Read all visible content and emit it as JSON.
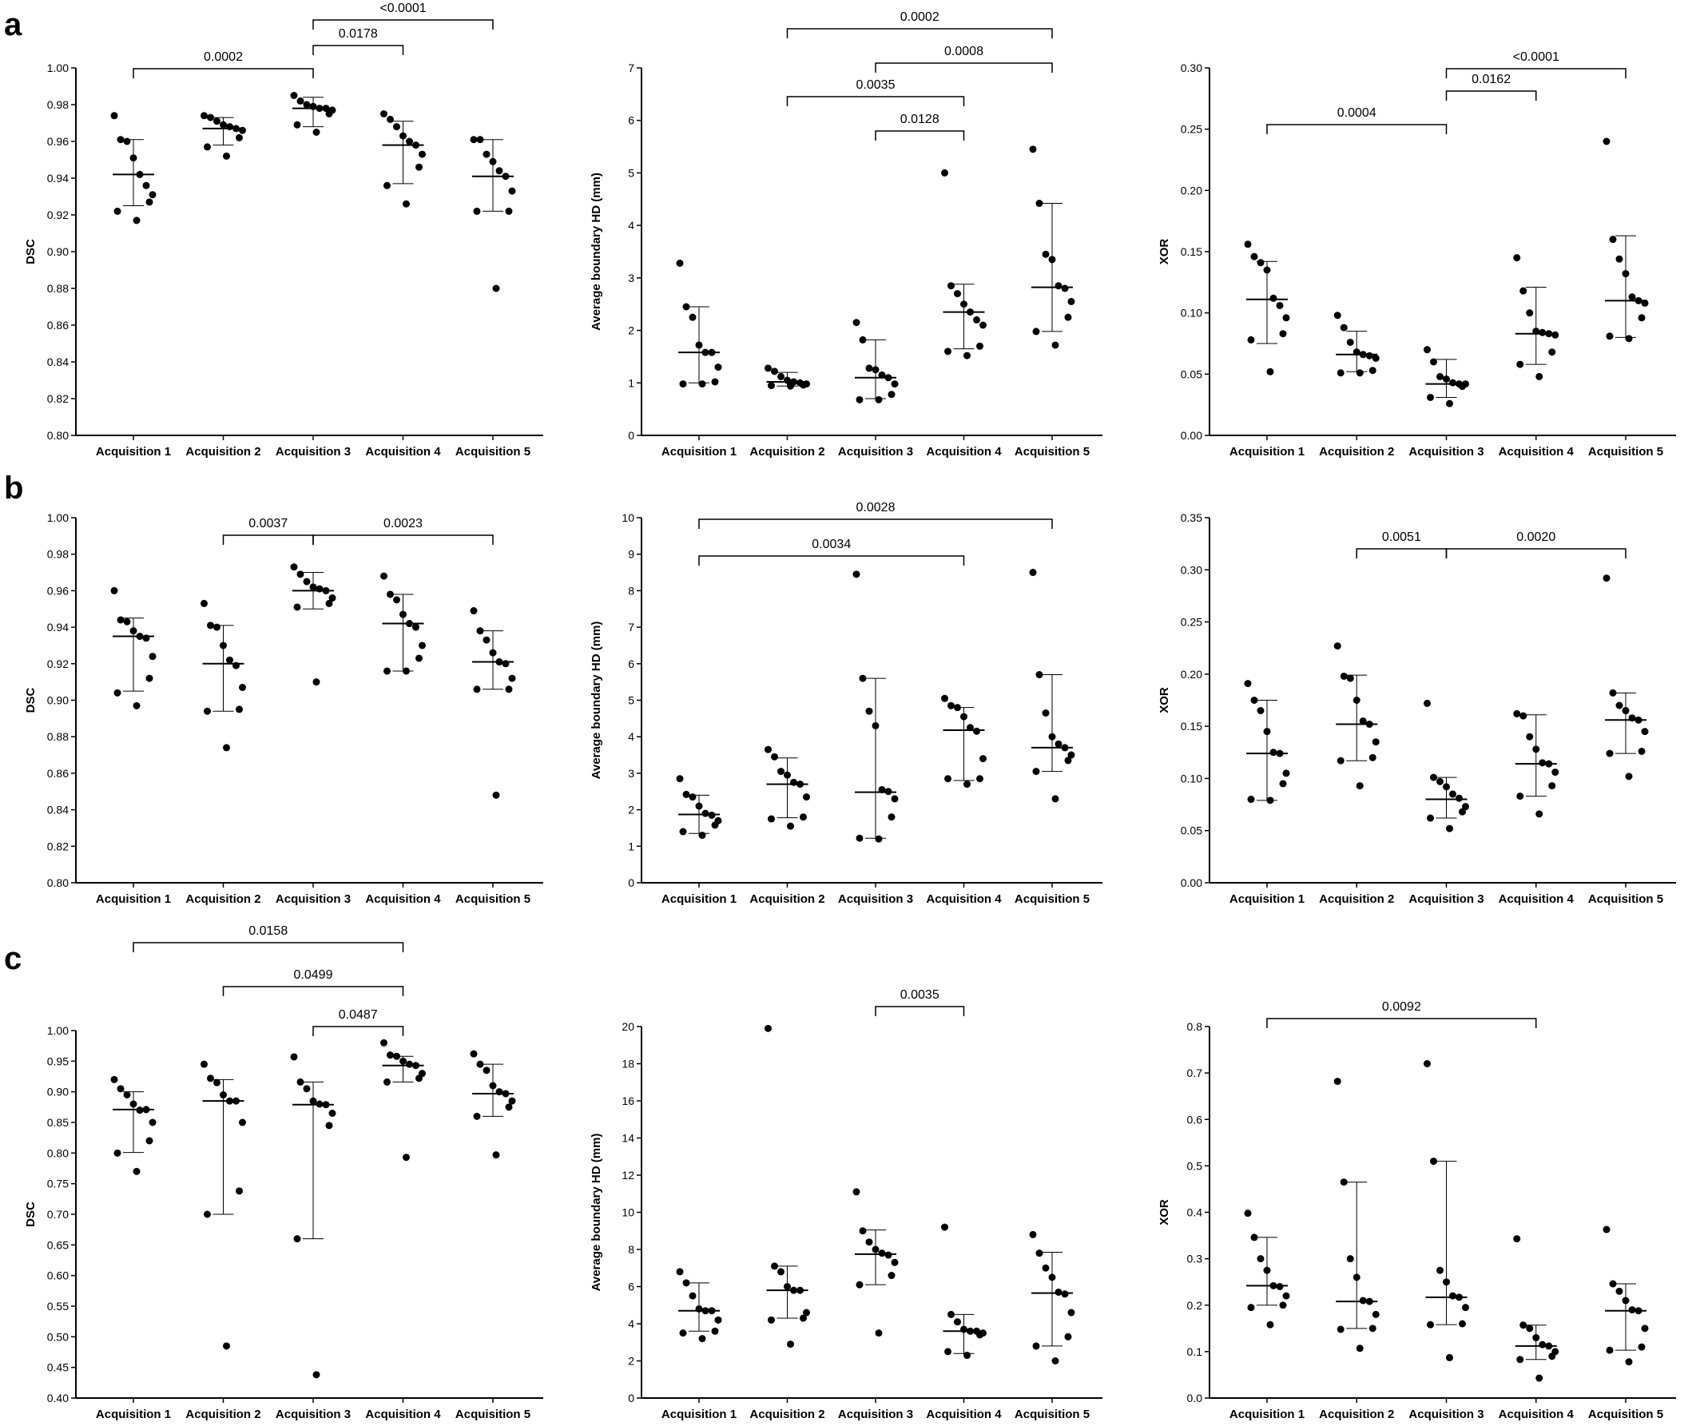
{
  "figure": {
    "row_labels": [
      "a",
      "b",
      "c"
    ]
  },
  "chart_data": [
    {
      "type": "scatter",
      "panel": "a-dsc",
      "row": "a",
      "title": "",
      "xlabel": "",
      "ylabel": "DSC",
      "categories": [
        "Acquisition 1",
        "Acquisition 2",
        "Acquisition 3",
        "Acquisition 4",
        "Acquisition 5"
      ],
      "ylim": [
        0.8,
        1.0
      ],
      "yticks": [
        "0.80",
        "0.82",
        "0.84",
        "0.86",
        "0.88",
        "0.90",
        "0.92",
        "0.94",
        "0.96",
        "0.98",
        "1.00"
      ],
      "points": [
        [
          0.974,
          0.961,
          0.96,
          0.951,
          0.942,
          0.936,
          0.931,
          0.927,
          0.922,
          0.917
        ],
        [
          0.974,
          0.973,
          0.971,
          0.969,
          0.968,
          0.967,
          0.966,
          0.962,
          0.957,
          0.952
        ],
        [
          0.985,
          0.982,
          0.98,
          0.979,
          0.978,
          0.978,
          0.977,
          0.975,
          0.969,
          0.965
        ],
        [
          0.975,
          0.972,
          0.968,
          0.963,
          0.96,
          0.958,
          0.953,
          0.946,
          0.936,
          0.926
        ],
        [
          0.961,
          0.961,
          0.953,
          0.949,
          0.944,
          0.941,
          0.933,
          0.922,
          0.922,
          0.88
        ]
      ],
      "median": [
        0.942,
        0.967,
        0.978,
        0.958,
        0.941
      ],
      "upper": [
        0.961,
        0.973,
        0.984,
        0.971,
        0.961
      ],
      "lower": [
        0.925,
        0.958,
        0.968,
        0.937,
        0.922
      ],
      "significance": [
        {
          "from": 1,
          "to": 3,
          "label": "0.0002"
        },
        {
          "from": 3,
          "to": 4,
          "label": "0.0178"
        },
        {
          "from": 3,
          "to": 5,
          "label": "<0.0001"
        }
      ]
    },
    {
      "type": "scatter",
      "panel": "a-hd",
      "row": "a",
      "title": "",
      "xlabel": "",
      "ylabel": "Average boundary HD (mm)",
      "categories": [
        "Acquisition 1",
        "Acquisition 2",
        "Acquisition 3",
        "Acquisition 4",
        "Acquisition 5"
      ],
      "ylim": [
        0,
        7
      ],
      "yticks": [
        "0",
        "1",
        "2",
        "3",
        "4",
        "5",
        "6",
        "7"
      ],
      "points": [
        [
          3.28,
          2.45,
          2.25,
          1.72,
          1.58,
          1.58,
          1.3,
          1.02,
          0.98,
          0.98
        ],
        [
          1.28,
          1.22,
          1.12,
          1.05,
          1.02,
          1.0,
          0.98,
          0.96,
          0.95,
          0.94
        ],
        [
          2.15,
          1.82,
          1.28,
          1.25,
          1.15,
          1.1,
          0.98,
          0.78,
          0.68,
          0.68
        ],
        [
          5.0,
          2.85,
          2.7,
          2.5,
          2.35,
          2.2,
          2.1,
          1.7,
          1.6,
          1.52
        ],
        [
          5.45,
          4.42,
          3.45,
          3.35,
          2.85,
          2.8,
          2.55,
          2.25,
          1.98,
          1.72
        ]
      ],
      "median": [
        1.58,
        1.02,
        1.1,
        2.35,
        2.82
      ],
      "upper": [
        2.45,
        1.2,
        1.82,
        2.88,
        4.42
      ],
      "lower": [
        1.0,
        0.94,
        0.7,
        1.65,
        1.98
      ],
      "significance": [
        {
          "from": 2,
          "to": 5,
          "label": "0.0002"
        },
        {
          "from": 3,
          "to": 5,
          "label": "0.0008"
        },
        {
          "from": 2,
          "to": 4,
          "label": "0.0035"
        },
        {
          "from": 3,
          "to": 4,
          "label": "0.0128"
        }
      ]
    },
    {
      "type": "scatter",
      "panel": "a-xor",
      "row": "a",
      "title": "",
      "xlabel": "",
      "ylabel": "XOR",
      "categories": [
        "Acquisition 1",
        "Acquisition 2",
        "Acquisition 3",
        "Acquisition 4",
        "Acquisition 5"
      ],
      "ylim": [
        0.0,
        0.3
      ],
      "yticks": [
        "0.00",
        "0.05",
        "0.10",
        "0.15",
        "0.20",
        "0.25",
        "0.30"
      ],
      "points": [
        [
          0.156,
          0.146,
          0.141,
          0.135,
          0.112,
          0.106,
          0.096,
          0.083,
          0.078,
          0.052
        ],
        [
          0.098,
          0.088,
          0.076,
          0.068,
          0.066,
          0.065,
          0.063,
          0.053,
          0.051,
          0.051
        ],
        [
          0.07,
          0.06,
          0.048,
          0.046,
          0.043,
          0.042,
          0.042,
          0.04,
          0.031,
          0.026
        ],
        [
          0.145,
          0.118,
          0.1,
          0.085,
          0.084,
          0.083,
          0.082,
          0.068,
          0.058,
          0.048
        ],
        [
          0.24,
          0.16,
          0.144,
          0.132,
          0.113,
          0.11,
          0.108,
          0.096,
          0.081,
          0.079
        ]
      ],
      "median": [
        0.111,
        0.066,
        0.042,
        0.083,
        0.11
      ],
      "upper": [
        0.142,
        0.085,
        0.062,
        0.121,
        0.163
      ],
      "lower": [
        0.075,
        0.052,
        0.031,
        0.058,
        0.08
      ],
      "significance": [
        {
          "from": 1,
          "to": 3,
          "label": "0.0004"
        },
        {
          "from": 3,
          "to": 4,
          "label": "0.0162"
        },
        {
          "from": 3,
          "to": 5,
          "label": "<0.0001"
        }
      ]
    },
    {
      "type": "scatter",
      "panel": "b-dsc",
      "row": "b",
      "title": "",
      "xlabel": "",
      "ylabel": "DSC",
      "categories": [
        "Acquisition 1",
        "Acquisition 2",
        "Acquisition 3",
        "Acquisition 4",
        "Acquisition 5"
      ],
      "ylim": [
        0.8,
        1.0
      ],
      "yticks": [
        "0.80",
        "0.82",
        "0.84",
        "0.86",
        "0.88",
        "0.90",
        "0.92",
        "0.94",
        "0.96",
        "0.98",
        "1.00"
      ],
      "points": [
        [
          0.96,
          0.944,
          0.943,
          0.938,
          0.935,
          0.934,
          0.924,
          0.912,
          0.904,
          0.897
        ],
        [
          0.953,
          0.941,
          0.94,
          0.93,
          0.922,
          0.919,
          0.907,
          0.895,
          0.894,
          0.874
        ],
        [
          0.973,
          0.969,
          0.965,
          0.962,
          0.961,
          0.96,
          0.956,
          0.953,
          0.951,
          0.91
        ],
        [
          0.968,
          0.958,
          0.955,
          0.947,
          0.942,
          0.94,
          0.93,
          0.923,
          0.916,
          0.916
        ],
        [
          0.949,
          0.938,
          0.933,
          0.926,
          0.921,
          0.92,
          0.912,
          0.906,
          0.906,
          0.848
        ]
      ],
      "median": [
        0.935,
        0.92,
        0.96,
        0.942,
        0.921
      ],
      "upper": [
        0.945,
        0.941,
        0.97,
        0.958,
        0.938
      ],
      "lower": [
        0.905,
        0.894,
        0.95,
        0.916,
        0.906
      ],
      "significance": [
        {
          "from": 2,
          "to": 3,
          "label": "0.0037"
        },
        {
          "from": 3,
          "to": 5,
          "label": "0.0023"
        }
      ]
    },
    {
      "type": "scatter",
      "panel": "b-hd",
      "row": "b",
      "title": "",
      "xlabel": "",
      "ylabel": "Average boundary HD (mm)",
      "categories": [
        "Acquisition 1",
        "Acquisition 2",
        "Acquisition 3",
        "Acquisition 4",
        "Acquisition 5"
      ],
      "ylim": [
        0,
        10
      ],
      "yticks": [
        "0",
        "1",
        "2",
        "3",
        "4",
        "5",
        "6",
        "7",
        "8",
        "9",
        "10"
      ],
      "points": [
        [
          2.85,
          2.42,
          2.35,
          2.1,
          1.9,
          1.85,
          1.7,
          1.58,
          1.4,
          1.3
        ],
        [
          3.65,
          3.45,
          3.05,
          2.95,
          2.75,
          2.7,
          2.35,
          1.8,
          1.75,
          1.55
        ],
        [
          8.45,
          5.6,
          4.7,
          4.3,
          2.55,
          2.5,
          2.3,
          1.8,
          1.22,
          1.2
        ],
        [
          5.05,
          4.85,
          4.8,
          4.55,
          4.25,
          4.15,
          3.4,
          2.85,
          2.85,
          2.7
        ],
        [
          8.5,
          5.7,
          4.65,
          4.0,
          3.8,
          3.7,
          3.5,
          3.35,
          3.05,
          2.3
        ]
      ],
      "median": [
        1.87,
        2.7,
        2.48,
        4.18,
        3.7
      ],
      "upper": [
        2.4,
        3.42,
        5.6,
        4.8,
        5.7
      ],
      "lower": [
        1.35,
        1.78,
        1.22,
        2.8,
        3.05
      ],
      "significance": [
        {
          "from": 1,
          "to": 5,
          "label": "0.0028"
        },
        {
          "from": 1,
          "to": 4,
          "label": "0.0034"
        }
      ]
    },
    {
      "type": "scatter",
      "panel": "b-xor",
      "row": "b",
      "title": "",
      "xlabel": "",
      "ylabel": "XOR",
      "categories": [
        "Acquisition 1",
        "Acquisition 2",
        "Acquisition 3",
        "Acquisition 4",
        "Acquisition 5"
      ],
      "ylim": [
        0.0,
        0.35
      ],
      "yticks": [
        "0.00",
        "0.05",
        "0.10",
        "0.15",
        "0.20",
        "0.25",
        "0.30",
        "0.35"
      ],
      "points": [
        [
          0.191,
          0.175,
          0.165,
          0.145,
          0.125,
          0.124,
          0.105,
          0.095,
          0.08,
          0.079
        ],
        [
          0.227,
          0.198,
          0.196,
          0.175,
          0.155,
          0.152,
          0.135,
          0.12,
          0.117,
          0.093
        ],
        [
          0.172,
          0.101,
          0.097,
          0.092,
          0.085,
          0.081,
          0.073,
          0.068,
          0.062,
          0.052
        ],
        [
          0.162,
          0.16,
          0.14,
          0.128,
          0.115,
          0.114,
          0.106,
          0.093,
          0.083,
          0.066
        ],
        [
          0.292,
          0.182,
          0.17,
          0.165,
          0.158,
          0.156,
          0.145,
          0.126,
          0.124,
          0.102
        ]
      ],
      "median": [
        0.124,
        0.152,
        0.08,
        0.114,
        0.156
      ],
      "upper": [
        0.175,
        0.199,
        0.101,
        0.161,
        0.182
      ],
      "lower": [
        0.079,
        0.117,
        0.062,
        0.083,
        0.124
      ],
      "significance": [
        {
          "from": 2,
          "to": 3,
          "label": "0.0051"
        },
        {
          "from": 3,
          "to": 5,
          "label": "0.0020"
        }
      ]
    },
    {
      "type": "scatter",
      "panel": "c-dsc",
      "row": "c",
      "title": "",
      "xlabel": "",
      "ylabel": "DSC",
      "categories": [
        "Acquisition 1",
        "Acquisition 2",
        "Acquisition 3",
        "Acquisition 4",
        "Acquisition 5"
      ],
      "ylim": [
        0.4,
        1.0
      ],
      "yticks": [
        "0.40",
        "0.45",
        "0.50",
        "0.55",
        "0.60",
        "0.65",
        "0.70",
        "0.75",
        "0.80",
        "0.85",
        "0.90",
        "0.95",
        "1.00"
      ],
      "points": [
        [
          0.92,
          0.905,
          0.895,
          0.88,
          0.87,
          0.871,
          0.85,
          0.82,
          0.8,
          0.77
        ],
        [
          0.945,
          0.922,
          0.915,
          0.895,
          0.885,
          0.885,
          0.85,
          0.738,
          0.7,
          0.485
        ],
        [
          0.957,
          0.916,
          0.905,
          0.885,
          0.88,
          0.879,
          0.865,
          0.845,
          0.66,
          0.438
        ],
        [
          0.98,
          0.96,
          0.958,
          0.95,
          0.945,
          0.943,
          0.93,
          0.922,
          0.916,
          0.793
        ],
        [
          0.962,
          0.945,
          0.935,
          0.91,
          0.9,
          0.897,
          0.885,
          0.875,
          0.86,
          0.797
        ]
      ],
      "median": [
        0.871,
        0.885,
        0.879,
        0.943,
        0.897
      ],
      "upper": [
        0.9,
        0.92,
        0.916,
        0.958,
        0.945
      ],
      "lower": [
        0.801,
        0.7,
        0.66,
        0.916,
        0.86
      ],
      "significance": [
        {
          "from": 1,
          "to": 4,
          "label": "0.0158"
        },
        {
          "from": 2,
          "to": 4,
          "label": "0.0499"
        },
        {
          "from": 3,
          "to": 4,
          "label": "0.0487"
        }
      ]
    },
    {
      "type": "scatter",
      "panel": "c-hd",
      "row": "c",
      "title": "",
      "xlabel": "",
      "ylabel": "Average boundary HD (mm)",
      "categories": [
        "Acquisition 1",
        "Acquisition 2",
        "Acquisition 3",
        "Acquisition 4",
        "Acquisition 5"
      ],
      "ylim": [
        0,
        20
      ],
      "yticks": [
        "0",
        "2",
        "4",
        "6",
        "8",
        "10",
        "12",
        "14",
        "16",
        "18",
        "20"
      ],
      "points": [
        [
          6.8,
          6.2,
          5.5,
          4.8,
          4.7,
          4.7,
          4.2,
          3.6,
          3.5,
          3.2
        ],
        [
          19.9,
          7.1,
          6.8,
          6.0,
          5.8,
          5.8,
          4.6,
          4.3,
          4.2,
          2.9
        ],
        [
          11.1,
          9.0,
          8.4,
          8.0,
          7.8,
          7.7,
          7.3,
          6.6,
          6.1,
          3.5
        ],
        [
          9.2,
          4.5,
          4.1,
          3.7,
          3.6,
          3.6,
          3.5,
          3.4,
          2.5,
          2.3
        ],
        [
          8.8,
          7.8,
          7.0,
          6.5,
          5.7,
          5.6,
          4.6,
          3.3,
          2.8,
          2.0
        ]
      ],
      "median": [
        4.7,
        5.8,
        7.75,
        3.6,
        5.65
      ],
      "upper": [
        6.2,
        7.1,
        9.05,
        4.5,
        7.85
      ],
      "lower": [
        3.6,
        4.3,
        6.1,
        2.4,
        2.8
      ],
      "significance": [
        {
          "from": 3,
          "to": 4,
          "label": "0.0035"
        }
      ]
    },
    {
      "type": "scatter",
      "panel": "c-xor",
      "row": "c",
      "title": "",
      "xlabel": "",
      "ylabel": "XOR",
      "categories": [
        "Acquisition 1",
        "Acquisition 2",
        "Acquisition 3",
        "Acquisition 4",
        "Acquisition 5"
      ],
      "ylim": [
        0.0,
        0.8
      ],
      "yticks": [
        "0.0",
        "0.1",
        "0.2",
        "0.3",
        "0.4",
        "0.5",
        "0.6",
        "0.7",
        "0.8"
      ],
      "points": [
        [
          0.398,
          0.346,
          0.3,
          0.275,
          0.242,
          0.24,
          0.22,
          0.2,
          0.195,
          0.158
        ],
        [
          0.682,
          0.465,
          0.3,
          0.26,
          0.21,
          0.208,
          0.18,
          0.15,
          0.148,
          0.107
        ],
        [
          0.72,
          0.51,
          0.275,
          0.25,
          0.22,
          0.217,
          0.195,
          0.16,
          0.158,
          0.087
        ],
        [
          0.343,
          0.157,
          0.15,
          0.13,
          0.115,
          0.112,
          0.1,
          0.09,
          0.083,
          0.043
        ],
        [
          0.363,
          0.246,
          0.23,
          0.21,
          0.19,
          0.188,
          0.15,
          0.11,
          0.103,
          0.078
        ]
      ],
      "median": [
        0.242,
        0.208,
        0.217,
        0.112,
        0.188
      ],
      "upper": [
        0.346,
        0.465,
        0.51,
        0.157,
        0.246
      ],
      "lower": [
        0.2,
        0.15,
        0.158,
        0.083,
        0.103
      ],
      "significance": [
        {
          "from": 1,
          "to": 4,
          "label": "0.0092"
        }
      ]
    }
  ]
}
